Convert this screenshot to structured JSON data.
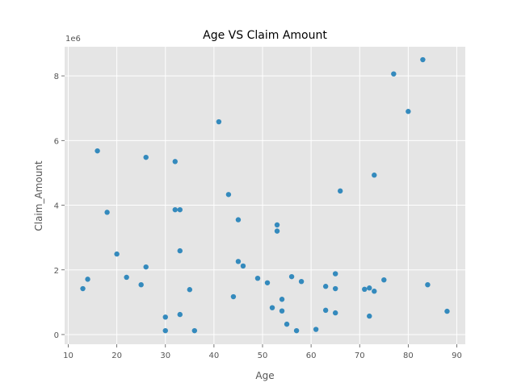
{
  "chart_data": {
    "type": "scatter",
    "title": "Age VS Claim Amount",
    "xlabel": "Age",
    "ylabel": "Claim_Amount",
    "y_offset_label": "1e6",
    "xlim": [
      9.25,
      91.75
    ],
    "ylim": [
      -0.3,
      8.9
    ],
    "y_scale_multiplier": 1000000,
    "xticks": [
      10,
      20,
      30,
      40,
      50,
      60,
      70,
      80,
      90
    ],
    "yticks": [
      0,
      2,
      4,
      6,
      8
    ],
    "grid": true,
    "style": "ggplot",
    "background_color": "#E5E5E5",
    "grid_color": "#FFFFFF",
    "point_color": "#348ABD",
    "points": [
      {
        "x": 13,
        "y": 1.42
      },
      {
        "x": 14,
        "y": 1.71
      },
      {
        "x": 16,
        "y": 5.68
      },
      {
        "x": 18,
        "y": 3.78
      },
      {
        "x": 20,
        "y": 2.49
      },
      {
        "x": 22,
        "y": 1.77
      },
      {
        "x": 25,
        "y": 1.54
      },
      {
        "x": 26,
        "y": 5.48
      },
      {
        "x": 26,
        "y": 2.09
      },
      {
        "x": 30,
        "y": 0.54
      },
      {
        "x": 30,
        "y": 0.12
      },
      {
        "x": 32,
        "y": 5.35
      },
      {
        "x": 32,
        "y": 3.86
      },
      {
        "x": 33,
        "y": 3.86
      },
      {
        "x": 33,
        "y": 2.59
      },
      {
        "x": 33,
        "y": 0.62
      },
      {
        "x": 35,
        "y": 1.39
      },
      {
        "x": 36,
        "y": 0.12
      },
      {
        "x": 41,
        "y": 6.58
      },
      {
        "x": 43,
        "y": 4.33
      },
      {
        "x": 44,
        "y": 1.17
      },
      {
        "x": 45,
        "y": 3.55
      },
      {
        "x": 45,
        "y": 2.26
      },
      {
        "x": 46,
        "y": 2.12
      },
      {
        "x": 49,
        "y": 1.74
      },
      {
        "x": 51,
        "y": 1.6
      },
      {
        "x": 52,
        "y": 0.83
      },
      {
        "x": 53,
        "y": 3.39
      },
      {
        "x": 53,
        "y": 3.2
      },
      {
        "x": 54,
        "y": 1.09
      },
      {
        "x": 54,
        "y": 0.73
      },
      {
        "x": 55,
        "y": 0.32
      },
      {
        "x": 56,
        "y": 1.79
      },
      {
        "x": 57,
        "y": 0.12
      },
      {
        "x": 58,
        "y": 1.64
      },
      {
        "x": 61,
        "y": 0.16
      },
      {
        "x": 63,
        "y": 1.49
      },
      {
        "x": 63,
        "y": 0.75
      },
      {
        "x": 65,
        "y": 1.88
      },
      {
        "x": 65,
        "y": 1.42
      },
      {
        "x": 65,
        "y": 0.67
      },
      {
        "x": 66,
        "y": 4.44
      },
      {
        "x": 71,
        "y": 1.4
      },
      {
        "x": 72,
        "y": 1.44
      },
      {
        "x": 72,
        "y": 0.57
      },
      {
        "x": 73,
        "y": 4.93
      },
      {
        "x": 73,
        "y": 1.34
      },
      {
        "x": 75,
        "y": 1.69
      },
      {
        "x": 77,
        "y": 8.06
      },
      {
        "x": 80,
        "y": 6.9
      },
      {
        "x": 83,
        "y": 8.5
      },
      {
        "x": 84,
        "y": 1.54
      },
      {
        "x": 88,
        "y": 0.72
      }
    ]
  }
}
